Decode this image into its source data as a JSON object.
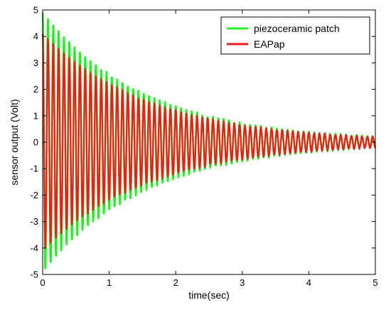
{
  "chart_data": {
    "type": "line",
    "title": "",
    "xlabel": "time(sec)",
    "ylabel": "sensor output (Volt)",
    "xlim": [
      0,
      5
    ],
    "ylim": [
      -5,
      5
    ],
    "x_ticks": [
      "0",
      "1",
      "2",
      "3",
      "4",
      "5"
    ],
    "y_ticks": [
      "5",
      "4",
      "3",
      "2",
      "1",
      "0",
      "-1",
      "-2",
      "-3",
      "-4",
      "-5"
    ],
    "grid": false,
    "legend_position": "top-right",
    "series": [
      {
        "name": "piezoceramic patch",
        "color": "#22ee22",
        "model": "damped_sine",
        "initial_amplitude": 4.9,
        "decay_rate": 0.65,
        "frequency_hz": 12.5,
        "residual_noise": 0.1,
        "x_start": 0,
        "x_end": 5
      },
      {
        "name": "EAPap",
        "color": "#ee1c1c",
        "model": "damped_sine",
        "initial_amplitude": 4.1,
        "decay_rate": 0.62,
        "frequency_hz": 12.5,
        "residual_noise": 0.08,
        "x_start": 0,
        "x_end": 5
      }
    ]
  }
}
